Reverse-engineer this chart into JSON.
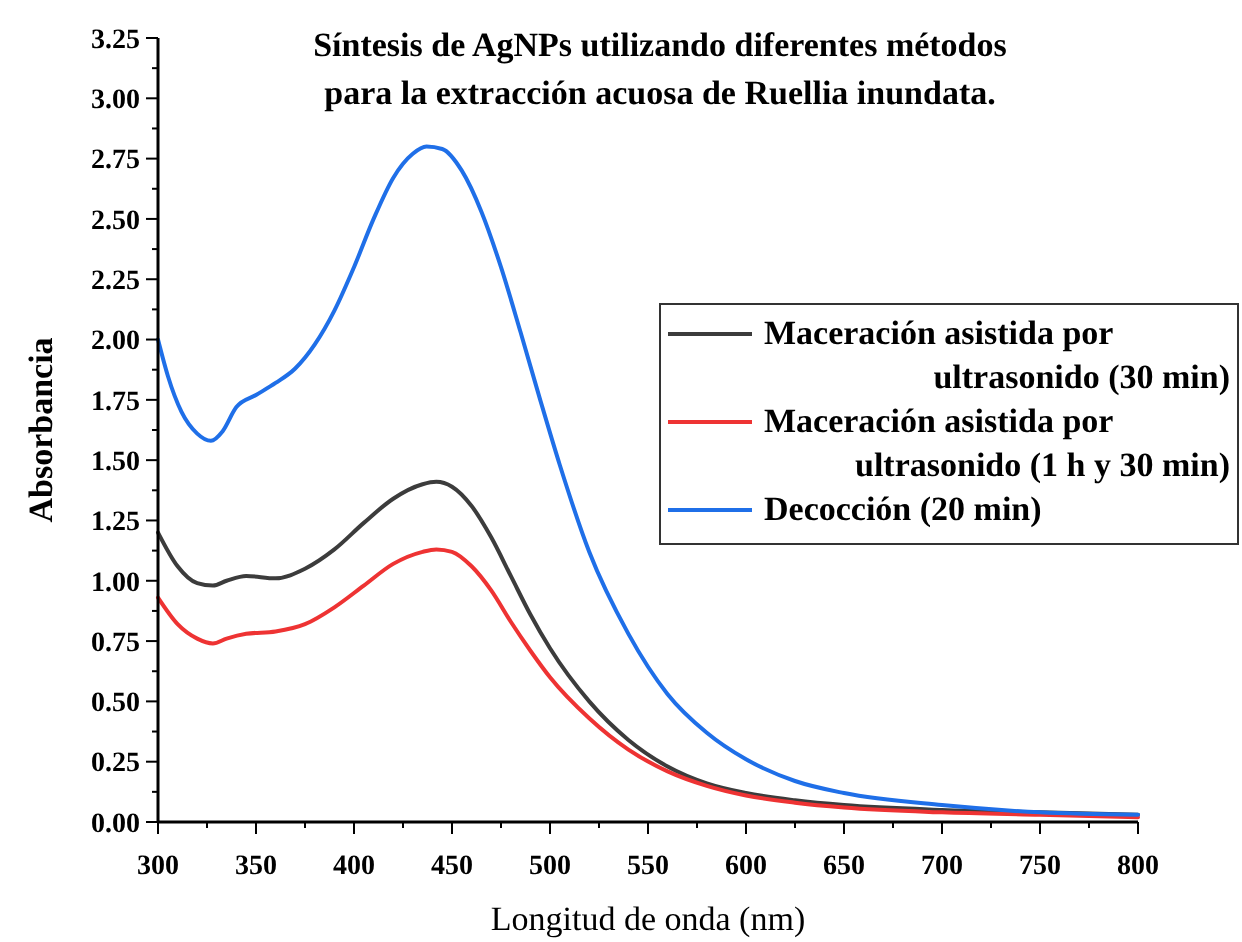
{
  "chart_data": {
    "type": "line",
    "title": "Síntesis de AgNPs utilizando diferentes métodos para la extracción acuosa de Ruellia inundata.",
    "xlabel": "Longitud de onda (nm)",
    "ylabel": "Absorbancia",
    "xlim": [
      300,
      800
    ],
    "xticks": [
      300,
      350,
      400,
      450,
      500,
      550,
      600,
      650,
      700,
      750,
      800
    ],
    "ylim": [
      0,
      3.25
    ],
    "yticks": [
      {
        "value": 0,
        "label": "0.00"
      },
      0.25,
      {
        "value": 0.5,
        "label": "0.50"
      },
      0.75,
      {
        "value": 1,
        "label": "1.00"
      },
      1.25,
      {
        "value": 1.5,
        "label": "1.50"
      },
      1.75,
      {
        "value": 2,
        "label": "2.00"
      },
      2.25,
      {
        "value": 2.5,
        "label": "2.50"
      },
      2.75,
      {
        "value": 3,
        "label": "3.00"
      },
      3.25
    ],
    "grid": false,
    "legend": "right",
    "line_style": "solid",
    "series": [
      {
        "name": "Maceración asistida por ultrasonido (30 min)",
        "color": "#3c3c3c",
        "x": [
          300,
          310,
          320,
          328,
          335,
          345,
          360,
          375,
          390,
          405,
          420,
          435,
          442,
          450,
          460,
          470,
          480,
          490,
          500,
          520,
          540,
          560,
          580,
          600,
          625,
          650,
          700,
          750,
          800
        ],
        "values": [
          1.2,
          1.06,
          0.99,
          0.98,
          1.0,
          1.02,
          1.01,
          1.05,
          1.13,
          1.24,
          1.34,
          1.4,
          1.41,
          1.39,
          1.31,
          1.18,
          1.02,
          0.86,
          0.72,
          0.5,
          0.34,
          0.23,
          0.16,
          0.12,
          0.09,
          0.07,
          0.05,
          0.04,
          0.03
        ]
      },
      {
        "name": "Maceración asistida por ultrasonido (1 h y 30 min)",
        "color": "#ee3333",
        "x": [
          300,
          310,
          320,
          328,
          335,
          345,
          360,
          375,
          390,
          405,
          420,
          435,
          442,
          450,
          460,
          470,
          480,
          490,
          500,
          520,
          540,
          560,
          580,
          600,
          625,
          650,
          700,
          750,
          800
        ],
        "values": [
          0.93,
          0.82,
          0.76,
          0.74,
          0.76,
          0.78,
          0.79,
          0.82,
          0.89,
          0.98,
          1.07,
          1.12,
          1.13,
          1.12,
          1.06,
          0.96,
          0.83,
          0.71,
          0.6,
          0.43,
          0.3,
          0.21,
          0.15,
          0.11,
          0.08,
          0.06,
          0.04,
          0.03,
          0.02
        ]
      },
      {
        "name": "Decocción (20 min)",
        "color": "#1f6fe8",
        "x": [
          300,
          305,
          312,
          320,
          327,
          333,
          340,
          350,
          360,
          370,
          380,
          390,
          400,
          410,
          420,
          430,
          437,
          445,
          455,
          465,
          475,
          485,
          495,
          505,
          520,
          540,
          560,
          580,
          600,
          625,
          650,
          700,
          750,
          800
        ],
        "values": [
          2.0,
          1.85,
          1.7,
          1.61,
          1.58,
          1.62,
          1.72,
          1.77,
          1.82,
          1.88,
          1.98,
          2.12,
          2.3,
          2.5,
          2.67,
          2.77,
          2.8,
          2.79,
          2.7,
          2.53,
          2.3,
          2.03,
          1.75,
          1.48,
          1.12,
          0.78,
          0.53,
          0.37,
          0.26,
          0.17,
          0.12,
          0.07,
          0.04,
          0.03
        ]
      }
    ]
  }
}
